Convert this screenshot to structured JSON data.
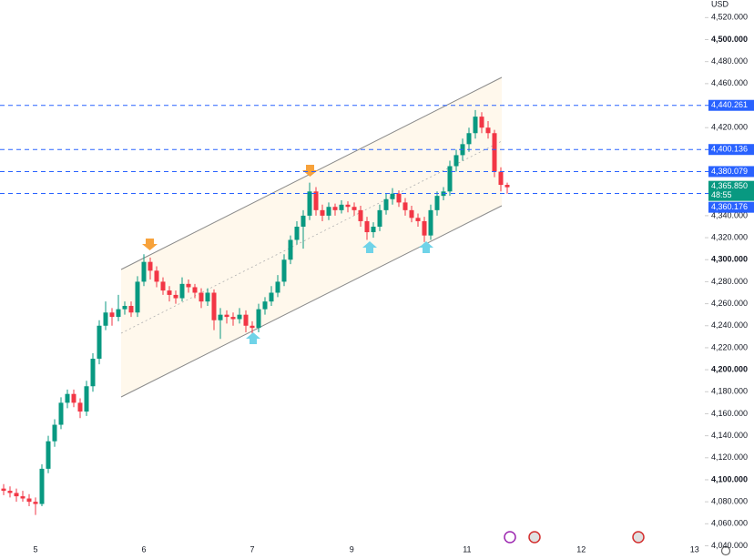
{
  "chart_data": {
    "type": "candlestick",
    "currency": "USD",
    "up_color": "#089981",
    "down_color": "#f23645",
    "ylim": [
      4028,
      4536
    ],
    "yticks": [
      {
        "value": 4040,
        "label": "4,040.000"
      },
      {
        "value": 4060,
        "label": "4,060.000"
      },
      {
        "value": 4080,
        "label": "4,080.000"
      },
      {
        "value": 4100,
        "label": "4,100.000"
      },
      {
        "value": 4120,
        "label": "4,120.000"
      },
      {
        "value": 4140,
        "label": "4,140.000"
      },
      {
        "value": 4160,
        "label": "4,160.000"
      },
      {
        "value": 4180,
        "label": "4,180.000"
      },
      {
        "value": 4200,
        "label": "4,200.000"
      },
      {
        "value": 4220,
        "label": "4,220.000"
      },
      {
        "value": 4240,
        "label": "4,240.000"
      },
      {
        "value": 4260,
        "label": "4,260.000"
      },
      {
        "value": 4280,
        "label": "4,280.000"
      },
      {
        "value": 4300,
        "label": "4,300.000"
      },
      {
        "value": 4320,
        "label": "4,320.000"
      },
      {
        "value": 4340,
        "label": "4,340.000"
      },
      {
        "value": 4420,
        "label": "4,420.000"
      },
      {
        "value": 4460,
        "label": "4,460.000"
      },
      {
        "value": 4480,
        "label": "4,480.000"
      },
      {
        "value": 4500,
        "label": "4,500.000"
      },
      {
        "value": 4520,
        "label": "4,520.000"
      }
    ],
    "xticks": [
      {
        "value": 5,
        "label": "5"
      },
      {
        "value": 22,
        "label": "6"
      },
      {
        "value": 39,
        "label": "7"
      },
      {
        "value": 54.6,
        "label": "9"
      },
      {
        "value": 72.7,
        "label": "11"
      },
      {
        "value": 90.6,
        "label": "12"
      },
      {
        "value": 108.4,
        "label": "13"
      }
    ],
    "price_lines": [
      {
        "value": 4440.261,
        "label": "4,440.261"
      },
      {
        "value": 4400.136,
        "label": "4,400.136"
      },
      {
        "value": 4380.079,
        "label": "4,380.079"
      },
      {
        "value": 4360.176,
        "label": "4,360.176"
      }
    ],
    "price_line_color": "#2962ff",
    "last_price": {
      "value": 4365.85,
      "label": "4,365.850",
      "countdown": "48:55"
    },
    "candles": [
      [
        4092,
        4096,
        4086,
        4090
      ],
      [
        4090,
        4094,
        4084,
        4088
      ],
      [
        4088,
        4092,
        4080,
        4085
      ],
      [
        4085,
        4090,
        4080,
        4083
      ],
      [
        4083,
        4087,
        4076,
        4080
      ],
      [
        4080,
        4084,
        4068,
        4078
      ],
      [
        4078,
        4114,
        4076,
        4110
      ],
      [
        4110,
        4140,
        4106,
        4135
      ],
      [
        4135,
        4155,
        4130,
        4150
      ],
      [
        4150,
        4175,
        4146,
        4170
      ],
      [
        4170,
        4182,
        4165,
        4178
      ],
      [
        4178,
        4182,
        4166,
        4170
      ],
      [
        4170,
        4174,
        4156,
        4162
      ],
      [
        4162,
        4190,
        4158,
        4185
      ],
      [
        4185,
        4215,
        4180,
        4210
      ],
      [
        4210,
        4245,
        4205,
        4240
      ],
      [
        4240,
        4262,
        4236,
        4252
      ],
      [
        4252,
        4256,
        4240,
        4248
      ],
      [
        4248,
        4268,
        4244,
        4255
      ],
      [
        4255,
        4262,
        4250,
        4258
      ],
      [
        4258,
        4262,
        4248,
        4252
      ],
      [
        4252,
        4285,
        4248,
        4280
      ],
      [
        4280,
        4305,
        4276,
        4298
      ],
      [
        4298,
        4302,
        4282,
        4290
      ],
      [
        4290,
        4294,
        4275,
        4280
      ],
      [
        4280,
        4284,
        4268,
        4272
      ],
      [
        4272,
        4276,
        4262,
        4268
      ],
      [
        4268,
        4272,
        4260,
        4265
      ],
      [
        4265,
        4284,
        4262,
        4278
      ],
      [
        4278,
        4282,
        4270,
        4275
      ],
      [
        4275,
        4278,
        4265,
        4270
      ],
      [
        4270,
        4274,
        4256,
        4262
      ],
      [
        4262,
        4274,
        4258,
        4270
      ],
      [
        4270,
        4273,
        4236,
        4245
      ],
      [
        4245,
        4256,
        4228,
        4250
      ],
      [
        4250,
        4254,
        4242,
        4248
      ],
      [
        4248,
        4252,
        4240,
        4246
      ],
      [
        4246,
        4256,
        4242,
        4250
      ],
      [
        4250,
        4254,
        4234,
        4240
      ],
      [
        4240,
        4244,
        4230,
        4238
      ],
      [
        4238,
        4260,
        4234,
        4255
      ],
      [
        4255,
        4266,
        4250,
        4262
      ],
      [
        4262,
        4276,
        4258,
        4270
      ],
      [
        4270,
        4286,
        4266,
        4280
      ],
      [
        4280,
        4305,
        4276,
        4300
      ],
      [
        4300,
        4322,
        4296,
        4318
      ],
      [
        4318,
        4335,
        4314,
        4330
      ],
      [
        4330,
        4345,
        4310,
        4340
      ],
      [
        4340,
        4370,
        4336,
        4362
      ],
      [
        4362,
        4366,
        4340,
        4345
      ],
      [
        4345,
        4350,
        4335,
        4340
      ],
      [
        4340,
        4352,
        4336,
        4348
      ],
      [
        4348,
        4351,
        4340,
        4345
      ],
      [
        4345,
        4354,
        4342,
        4350
      ],
      [
        4350,
        4353,
        4343,
        4348
      ],
      [
        4348,
        4352,
        4340,
        4345
      ],
      [
        4345,
        4349,
        4330,
        4335
      ],
      [
        4335,
        4339,
        4318,
        4325
      ],
      [
        4325,
        4334,
        4320,
        4330
      ],
      [
        4330,
        4350,
        4326,
        4345
      ],
      [
        4345,
        4360,
        4341,
        4355
      ],
      [
        4355,
        4365,
        4350,
        4360
      ],
      [
        4360,
        4363,
        4348,
        4352
      ],
      [
        4352,
        4356,
        4340,
        4345
      ],
      [
        4345,
        4349,
        4334,
        4338
      ],
      [
        4338,
        4342,
        4330,
        4335
      ],
      [
        4335,
        4339,
        4316,
        4322
      ],
      [
        4322,
        4350,
        4318,
        4345
      ],
      [
        4345,
        4362,
        4340,
        4358
      ],
      [
        4358,
        4366,
        4354,
        4362
      ],
      [
        4362,
        4390,
        4358,
        4385
      ],
      [
        4385,
        4400,
        4380,
        4395
      ],
      [
        4395,
        4410,
        4390,
        4405
      ],
      [
        4405,
        4420,
        4398,
        4415
      ],
      [
        4415,
        4436,
        4410,
        4430
      ],
      [
        4430,
        4434,
        4415,
        4420
      ],
      [
        4420,
        4426,
        4410,
        4415
      ],
      [
        4415,
        4418,
        4375,
        4380
      ],
      [
        4380,
        4384,
        4362,
        4368
      ],
      [
        4368,
        4370,
        4360,
        4365.85
      ]
    ]
  }
}
